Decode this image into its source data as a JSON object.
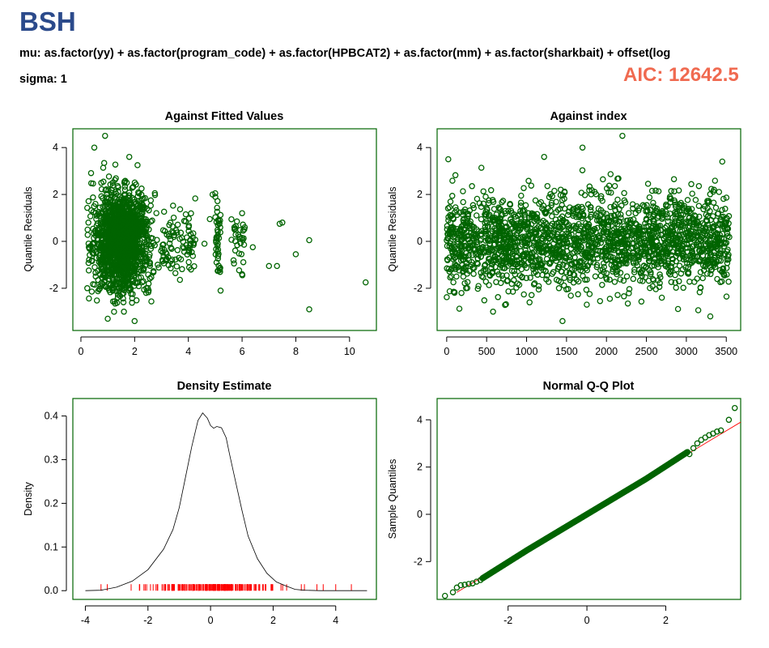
{
  "header": {
    "title": "BSH",
    "formula": "mu: as.factor(yy) + as.factor(program_code) + as.factor(HPBCAT2) + as.factor(mm) + as.factor(sharkbait) + offset(log",
    "sigma": "sigma: 1",
    "aic": "AIC: 12642.5"
  },
  "colors": {
    "points": "#006400",
    "frame": "#006400",
    "rug": "#ff0000",
    "qqline": "#ff0000",
    "density": "#000000",
    "title": "#2b4a8b",
    "aic": "#f06a50"
  },
  "chart_data": [
    {
      "type": "scatter",
      "title": "Against Fitted Values",
      "xlabel": "",
      "ylabel": "Quantile Residuals",
      "xlim": [
        -0.3,
        11
      ],
      "ylim": [
        -3.8,
        4.8
      ],
      "xticks": [
        0,
        2,
        4,
        6,
        8,
        10
      ],
      "yticks": [
        -2,
        0,
        2,
        4
      ],
      "marker": "open-circle",
      "n_points_approx": 3500,
      "bulk": {
        "x_range": [
          0.2,
          3.0
        ],
        "y_range": [
          -3.4,
          4.5
        ]
      },
      "outlying_points": [
        [
          10.6,
          -1.75
        ],
        [
          8.5,
          0.05
        ],
        [
          8.5,
          -2.9
        ],
        [
          8.0,
          -0.55
        ],
        [
          7.5,
          0.8
        ],
        [
          7.4,
          0.75
        ],
        [
          7.3,
          -1.05
        ],
        [
          7.0,
          -1.05
        ],
        [
          6.4,
          -0.25
        ],
        [
          6.1,
          0.6
        ],
        [
          6.0,
          1.2
        ],
        [
          6.0,
          -1.4
        ],
        [
          5.2,
          -2.1
        ],
        [
          4.9,
          2.0
        ],
        [
          5.0,
          2.05
        ],
        [
          5.1,
          0.7
        ],
        [
          4.8,
          0.95
        ],
        [
          4.6,
          -0.1
        ],
        [
          3.9,
          0.85
        ],
        [
          4.1,
          -1.2
        ]
      ]
    },
    {
      "type": "scatter",
      "title": "Against  index",
      "xlabel": "",
      "ylabel": "Quantile Residuals",
      "xlim": [
        -120,
        3680
      ],
      "ylim": [
        -3.8,
        4.8
      ],
      "xticks": [
        0,
        500,
        1000,
        1500,
        2000,
        2500,
        3000,
        3500
      ],
      "yticks": [
        -2,
        0,
        2,
        4
      ],
      "marker": "open-circle",
      "n_points_approx": 3540,
      "notable_points": [
        [
          2200,
          4.5
        ],
        [
          1700,
          4.0
        ],
        [
          1220,
          3.6
        ],
        [
          20,
          3.5
        ],
        [
          3450,
          3.4
        ],
        [
          1450,
          -3.4
        ],
        [
          3300,
          -3.2
        ],
        [
          580,
          -3.0
        ]
      ]
    },
    {
      "type": "line",
      "title": "Density Estimate",
      "xlabel": "",
      "ylabel": "Density",
      "xlim": [
        -4.4,
        5.3
      ],
      "ylim": [
        -0.02,
        0.44
      ],
      "xticks": [
        -4,
        -2,
        0,
        2,
        4
      ],
      "yticks": [
        0.0,
        0.1,
        0.2,
        0.3,
        0.4
      ],
      "x": [
        -4.0,
        -3.5,
        -3.0,
        -2.5,
        -2.0,
        -1.5,
        -1.2,
        -1.0,
        -0.8,
        -0.6,
        -0.4,
        -0.25,
        -0.1,
        0.0,
        0.1,
        0.2,
        0.35,
        0.5,
        0.6,
        0.8,
        1.0,
        1.2,
        1.5,
        1.8,
        2.1,
        2.4,
        2.7,
        3.0,
        3.5,
        4.0,
        4.5,
        5.0
      ],
      "y": [
        0.0,
        0.001,
        0.008,
        0.022,
        0.048,
        0.095,
        0.14,
        0.19,
        0.26,
        0.33,
        0.39,
        0.407,
        0.395,
        0.378,
        0.372,
        0.376,
        0.373,
        0.35,
        0.315,
        0.25,
        0.185,
        0.125,
        0.073,
        0.04,
        0.02,
        0.011,
        0.003,
        0.001,
        0.0,
        0.0,
        0.0,
        0.0
      ],
      "rug_range": [
        -3.5,
        4.5
      ],
      "rug_extremes": [
        -3.5,
        -3.3,
        2.9,
        3.0,
        3.4,
        3.6,
        4.0,
        4.5
      ]
    },
    {
      "type": "scatter",
      "title": "Normal Q-Q Plot",
      "xlabel": "",
      "ylabel": "Sample Quantiles",
      "xlim": [
        -3.8,
        3.9
      ],
      "ylim": [
        -3.6,
        4.9
      ],
      "xticks": [
        -2,
        0,
        2
      ],
      "yticks": [
        -2,
        0,
        2,
        4
      ],
      "marker": "open-circle",
      "reference_line": {
        "slope": 1.0,
        "intercept": 0.0
      },
      "n_points_approx": 3540,
      "upper_tail_points": [
        [
          2.6,
          2.55
        ],
        [
          2.7,
          2.8
        ],
        [
          2.8,
          3.0
        ],
        [
          2.9,
          3.15
        ],
        [
          3.0,
          3.25
        ],
        [
          3.1,
          3.35
        ],
        [
          3.2,
          3.42
        ],
        [
          3.3,
          3.5
        ],
        [
          3.4,
          3.55
        ],
        [
          3.6,
          4.0
        ],
        [
          3.75,
          4.5
        ]
      ],
      "lower_tail_points": [
        [
          -3.6,
          -3.45
        ],
        [
          -3.4,
          -3.3
        ],
        [
          -3.3,
          -3.1
        ],
        [
          -3.2,
          -3.0
        ],
        [
          -3.1,
          -2.98
        ],
        [
          -3.0,
          -2.95
        ],
        [
          -2.9,
          -2.92
        ],
        [
          -2.8,
          -2.85
        ],
        [
          -2.7,
          -2.78
        ]
      ]
    }
  ]
}
